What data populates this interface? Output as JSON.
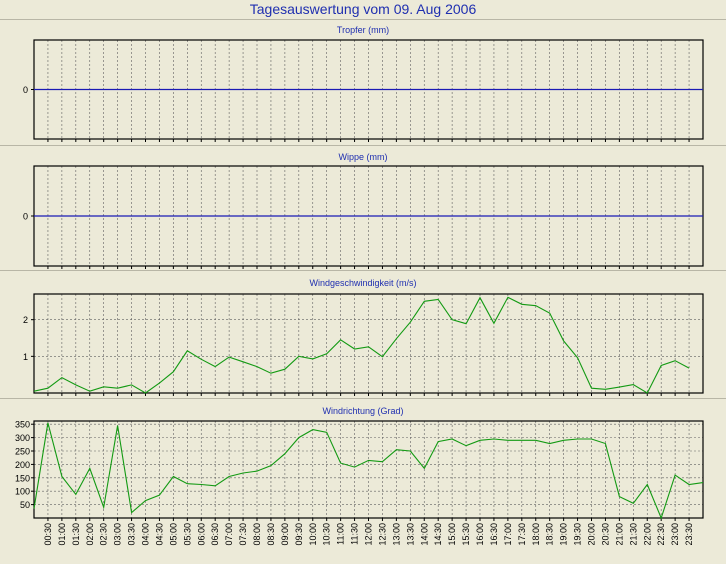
{
  "page": {
    "title": "Tagesauswertung vom 09. Aug 2006"
  },
  "time_labels": [
    "00:30",
    "01:00",
    "01:30",
    "02:00",
    "02:30",
    "03:00",
    "03:30",
    "04:00",
    "04:30",
    "05:00",
    "05:30",
    "06:00",
    "06:30",
    "07:00",
    "07:30",
    "08:00",
    "08:30",
    "09:00",
    "09:30",
    "10:00",
    "10:30",
    "11:00",
    "11:30",
    "12:00",
    "12:30",
    "13:00",
    "13:30",
    "14:00",
    "14:30",
    "15:00",
    "15:30",
    "16:00",
    "16:30",
    "17:00",
    "17:30",
    "18:00",
    "18:30",
    "19:00",
    "19:30",
    "20:00",
    "20:30",
    "21:00",
    "21:30",
    "22:00",
    "22:30",
    "23:00",
    "23:30"
  ],
  "colors": {
    "title": "#1f2fb0",
    "line_zero": "#1a1ab4",
    "series": "#139a13",
    "grid": "#606060"
  },
  "chart_data": [
    {
      "type": "line",
      "title": "Tropfer (mm)",
      "yticks": [
        0
      ],
      "ylim": [
        -1,
        1
      ],
      "x": [
        0,
        48
      ],
      "values": [
        0,
        0
      ],
      "grid": true
    },
    {
      "type": "line",
      "title": "Wippe (mm)",
      "yticks": [
        0
      ],
      "ylim": [
        -1,
        1
      ],
      "x": [
        0,
        48
      ],
      "values": [
        0,
        0
      ],
      "grid": true
    },
    {
      "type": "line",
      "title": "Windgeschwindigkeit (m/s)",
      "yticks": [
        1,
        2
      ],
      "ylim": [
        0,
        2.7
      ],
      "x_unit": "half-hour index, 0 = 00:00",
      "values": [
        0.05,
        0.13,
        0.42,
        0.22,
        0.05,
        0.17,
        0.13,
        0.22,
        0.0,
        0.27,
        0.58,
        1.15,
        0.92,
        0.72,
        0.98,
        0.85,
        0.72,
        0.54,
        0.65,
        1.0,
        0.93,
        1.07,
        1.45,
        1.2,
        1.26,
        0.99,
        1.48,
        1.93,
        2.5,
        2.55,
        2.0,
        1.89,
        2.6,
        1.9,
        2.61,
        2.42,
        2.38,
        2.18,
        1.42,
        0.96,
        0.13,
        0.1,
        0.16,
        0.23,
        0.0,
        0.75,
        0.88,
        0.68
      ],
      "grid": true
    },
    {
      "type": "line",
      "title": "Windrichtung (Grad)",
      "yticks": [
        50,
        100,
        150,
        200,
        250,
        300,
        350
      ],
      "ylim": [
        0,
        362
      ],
      "x_unit": "half-hour index, 0 = 00:00",
      "values": [
        35,
        355,
        155,
        88,
        185,
        40,
        345,
        20,
        65,
        85,
        155,
        128,
        125,
        120,
        155,
        168,
        175,
        195,
        240,
        300,
        330,
        320,
        205,
        190,
        215,
        210,
        255,
        250,
        185,
        285,
        295,
        270,
        290,
        295,
        290,
        290,
        290,
        278,
        290,
        295,
        295,
        278,
        80,
        55,
        125,
        0,
        160,
        125,
        132
      ],
      "grid": true
    }
  ]
}
